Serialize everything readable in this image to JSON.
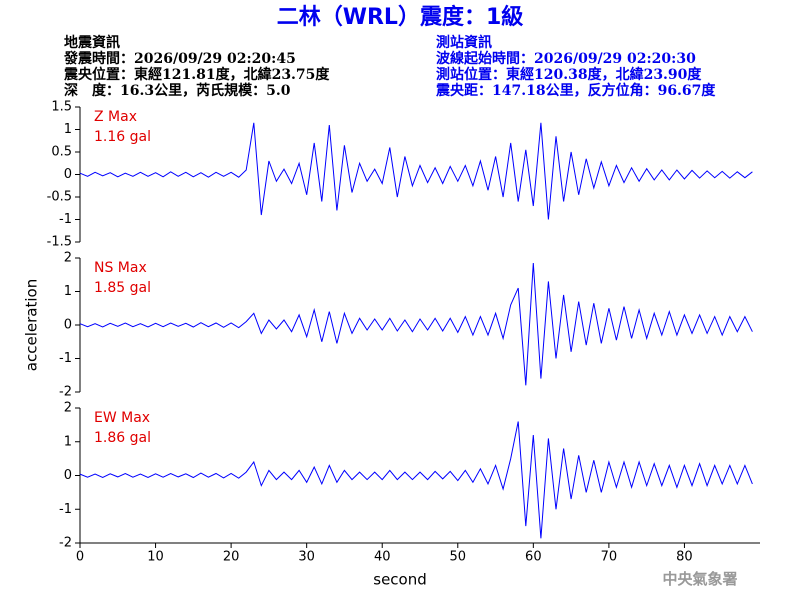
{
  "header": {
    "title": "二林（WRL）震度：1級",
    "left": [
      "地震資訊",
      "發震時間：2026/09/29 02:20:45",
      "震央位置：東經121.81度，北緯23.75度",
      "深　度：16.3公里，芮氏規模：5.0"
    ],
    "right": [
      "測站資訊",
      "波線起始時間：2026/09/29 02:20:30",
      "測站位置：東經120.38度，北緯23.90度",
      "震央距：147.18公里，反方位角：96.67度"
    ],
    "footer": "中央氣象署"
  },
  "chart_data": [
    {
      "type": "line",
      "annotation": [
        "Z Max",
        "1.16 gal"
      ],
      "annotation_color": "#e00000",
      "color": "#0000ff",
      "xlim": [
        0,
        90
      ],
      "ylim": [
        -1.5,
        1.5
      ],
      "yticks": [
        -1.5,
        -1,
        -0.5,
        0,
        0.5,
        1,
        1.5
      ],
      "x": [
        0,
        1,
        2,
        3,
        4,
        5,
        6,
        7,
        8,
        9,
        10,
        11,
        12,
        13,
        14,
        15,
        16,
        17,
        18,
        19,
        20,
        21,
        22,
        23,
        24,
        25,
        26,
        27,
        28,
        29,
        30,
        31,
        32,
        33,
        34,
        35,
        36,
        37,
        38,
        39,
        40,
        41,
        42,
        43,
        44,
        45,
        46,
        47,
        48,
        49,
        50,
        51,
        52,
        53,
        54,
        55,
        56,
        57,
        58,
        59,
        60,
        61,
        62,
        63,
        64,
        65,
        66,
        67,
        68,
        69,
        70,
        71,
        72,
        73,
        74,
        75,
        76,
        77,
        78,
        79,
        80,
        81,
        82,
        83,
        84,
        85,
        86,
        87,
        88,
        89
      ],
      "values": [
        0.03,
        -0.04,
        0.05,
        -0.03,
        0.04,
        -0.05,
        0.03,
        -0.04,
        0.05,
        -0.04,
        0.04,
        -0.05,
        0.06,
        -0.04,
        0.05,
        -0.05,
        0.04,
        -0.06,
        0.05,
        -0.04,
        0.05,
        -0.06,
        0.1,
        1.15,
        -0.9,
        0.3,
        -0.15,
        0.12,
        -0.2,
        0.25,
        -0.45,
        0.7,
        -0.6,
        1.1,
        -0.8,
        0.65,
        -0.4,
        0.25,
        -0.15,
        0.12,
        -0.2,
        0.6,
        -0.5,
        0.4,
        -0.25,
        0.2,
        -0.18,
        0.15,
        -0.2,
        0.18,
        -0.15,
        0.2,
        -0.25,
        0.3,
        -0.35,
        0.4,
        -0.5,
        0.7,
        -0.6,
        0.55,
        -0.7,
        1.15,
        -1.0,
        0.85,
        -0.6,
        0.5,
        -0.45,
        0.35,
        -0.3,
        0.28,
        -0.25,
        0.2,
        -0.18,
        0.15,
        -0.15,
        0.13,
        -0.12,
        0.1,
        -0.12,
        0.1,
        -0.1,
        0.09,
        -0.08,
        0.08,
        -0.07,
        0.07,
        -0.08,
        0.06,
        -0.07,
        0.06
      ]
    },
    {
      "type": "line",
      "annotation": [
        "NS Max",
        "1.85 gal"
      ],
      "annotation_color": "#e00000",
      "color": "#0000ff",
      "ylabel": "acceleration",
      "xlim": [
        0,
        90
      ],
      "ylim": [
        -2,
        2
      ],
      "yticks": [
        -2,
        -1,
        0,
        1,
        2
      ],
      "x": [
        0,
        1,
        2,
        3,
        4,
        5,
        6,
        7,
        8,
        9,
        10,
        11,
        12,
        13,
        14,
        15,
        16,
        17,
        18,
        19,
        20,
        21,
        22,
        23,
        24,
        25,
        26,
        27,
        28,
        29,
        30,
        31,
        32,
        33,
        34,
        35,
        36,
        37,
        38,
        39,
        40,
        41,
        42,
        43,
        44,
        45,
        46,
        47,
        48,
        49,
        50,
        51,
        52,
        53,
        54,
        55,
        56,
        57,
        58,
        59,
        60,
        61,
        62,
        63,
        64,
        65,
        66,
        67,
        68,
        69,
        70,
        71,
        72,
        73,
        74,
        75,
        76,
        77,
        78,
        79,
        80,
        81,
        82,
        83,
        84,
        85,
        86,
        87,
        88,
        89
      ],
      "values": [
        0.04,
        -0.05,
        0.04,
        -0.06,
        0.05,
        -0.04,
        0.06,
        -0.05,
        0.04,
        -0.06,
        0.05,
        -0.05,
        0.06,
        -0.04,
        0.05,
        -0.06,
        0.07,
        -0.05,
        0.06,
        -0.07,
        0.06,
        -0.08,
        0.1,
        0.35,
        -0.25,
        0.15,
        -0.12,
        0.15,
        -0.2,
        0.3,
        -0.35,
        0.45,
        -0.5,
        0.4,
        -0.55,
        0.35,
        -0.25,
        0.2,
        -0.15,
        0.18,
        -0.15,
        0.2,
        -0.18,
        0.15,
        -0.2,
        0.18,
        -0.15,
        0.2,
        -0.18,
        0.2,
        -0.22,
        0.25,
        -0.3,
        0.25,
        -0.3,
        0.35,
        -0.4,
        0.6,
        1.1,
        -1.8,
        1.85,
        -1.6,
        1.3,
        -1.0,
        0.9,
        -0.8,
        0.7,
        -0.6,
        0.65,
        -0.55,
        0.5,
        -0.45,
        0.55,
        -0.4,
        0.45,
        -0.4,
        0.35,
        -0.3,
        0.4,
        -0.3,
        0.3,
        -0.25,
        0.3,
        -0.25,
        0.25,
        -0.3,
        0.25,
        -0.2,
        0.25,
        -0.2
      ]
    },
    {
      "type": "line",
      "annotation": [
        "EW Max",
        "1.86 gal"
      ],
      "annotation_color": "#e00000",
      "color": "#0000ff",
      "xlabel": "second",
      "xlim": [
        0,
        90
      ],
      "xticks": [
        0,
        10,
        20,
        30,
        40,
        50,
        60,
        70,
        80
      ],
      "ylim": [
        -2,
        2
      ],
      "yticks": [
        -2,
        -1,
        0,
        1,
        2
      ],
      "x": [
        0,
        1,
        2,
        3,
        4,
        5,
        6,
        7,
        8,
        9,
        10,
        11,
        12,
        13,
        14,
        15,
        16,
        17,
        18,
        19,
        20,
        21,
        22,
        23,
        24,
        25,
        26,
        27,
        28,
        29,
        30,
        31,
        32,
        33,
        34,
        35,
        36,
        37,
        38,
        39,
        40,
        41,
        42,
        43,
        44,
        45,
        46,
        47,
        48,
        49,
        50,
        51,
        52,
        53,
        54,
        55,
        56,
        57,
        58,
        59,
        60,
        61,
        62,
        63,
        64,
        65,
        66,
        67,
        68,
        69,
        70,
        71,
        72,
        73,
        74,
        75,
        76,
        77,
        78,
        79,
        80,
        81,
        82,
        83,
        84,
        85,
        86,
        87,
        88,
        89
      ],
      "values": [
        0.04,
        -0.05,
        0.04,
        -0.06,
        0.05,
        -0.04,
        0.06,
        -0.05,
        0.04,
        -0.06,
        0.05,
        -0.05,
        0.06,
        -0.04,
        0.05,
        -0.06,
        0.07,
        -0.05,
        0.06,
        -0.07,
        0.06,
        -0.08,
        0.1,
        0.4,
        -0.3,
        0.15,
        -0.12,
        0.1,
        -0.12,
        0.15,
        -0.2,
        0.25,
        -0.25,
        0.3,
        -0.2,
        0.15,
        -0.12,
        0.1,
        -0.12,
        0.1,
        -0.12,
        0.15,
        -0.12,
        0.1,
        -0.12,
        0.1,
        -0.12,
        0.12,
        -0.1,
        0.12,
        -0.15,
        0.15,
        -0.2,
        0.2,
        -0.25,
        0.3,
        -0.4,
        0.5,
        1.6,
        -1.5,
        1.2,
        -1.86,
        1.1,
        -1.0,
        0.8,
        -0.7,
        0.6,
        -0.5,
        0.45,
        -0.5,
        0.4,
        -0.35,
        0.4,
        -0.35,
        0.4,
        -0.3,
        0.35,
        -0.3,
        0.3,
        -0.35,
        0.3,
        -0.3,
        0.35,
        -0.3,
        0.3,
        -0.25,
        0.3,
        -0.25,
        0.3,
        -0.25
      ]
    }
  ]
}
